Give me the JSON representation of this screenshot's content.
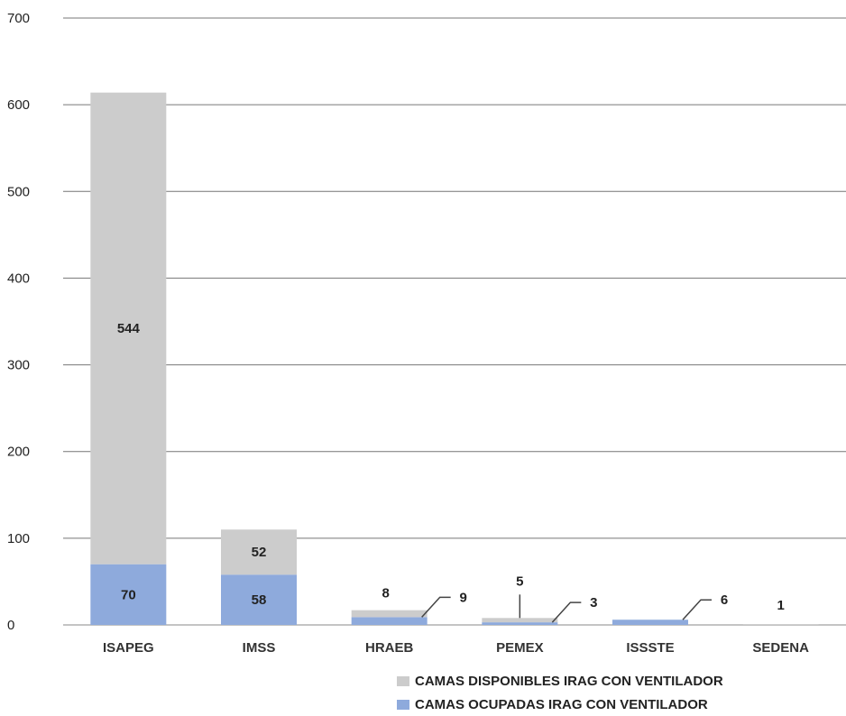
{
  "chart_data": {
    "type": "bar",
    "stacked": true,
    "categories": [
      "ISAPEG",
      "IMSS",
      "HRAEB",
      "PEMEX",
      "ISSSTE",
      "SEDENA"
    ],
    "series": [
      {
        "name": "CAMAS OCUPADAS IRAG CON VENTILADOR",
        "color": "#8eaadc",
        "values": [
          70,
          58,
          9,
          3,
          6,
          0
        ]
      },
      {
        "name": "CAMAS DISPONIBLES IRAG  CON VENTILADOR",
        "color": "#cccccc",
        "values": [
          544,
          52,
          8,
          5,
          0,
          1
        ]
      }
    ],
    "yticks": [
      "0",
      "100",
      "200",
      "300",
      "400",
      "500",
      "600",
      "700"
    ],
    "ylim": [
      0,
      700
    ],
    "grid": true,
    "legend_position": "bottom-right",
    "data_labels": [
      {
        "category": "ISAPEG",
        "series": 0,
        "text": "70",
        "placement": "inside"
      },
      {
        "category": "ISAPEG",
        "series": 1,
        "text": "544",
        "placement": "inside"
      },
      {
        "category": "IMSS",
        "series": 0,
        "text": "58",
        "placement": "inside"
      },
      {
        "category": "IMSS",
        "series": 1,
        "text": "52",
        "placement": "inside"
      },
      {
        "category": "HRAEB",
        "series": 1,
        "text": "8",
        "placement": "above"
      },
      {
        "category": "HRAEB",
        "series": 0,
        "text": "9",
        "placement": "callout-right"
      },
      {
        "category": "PEMEX",
        "series": 1,
        "text": "5",
        "placement": "callout-up"
      },
      {
        "category": "PEMEX",
        "series": 0,
        "text": "3",
        "placement": "callout-right"
      },
      {
        "category": "ISSSTE",
        "series": 0,
        "text": "6",
        "placement": "callout-right"
      },
      {
        "category": "SEDENA",
        "series": 1,
        "text": "1",
        "placement": "above"
      }
    ]
  }
}
